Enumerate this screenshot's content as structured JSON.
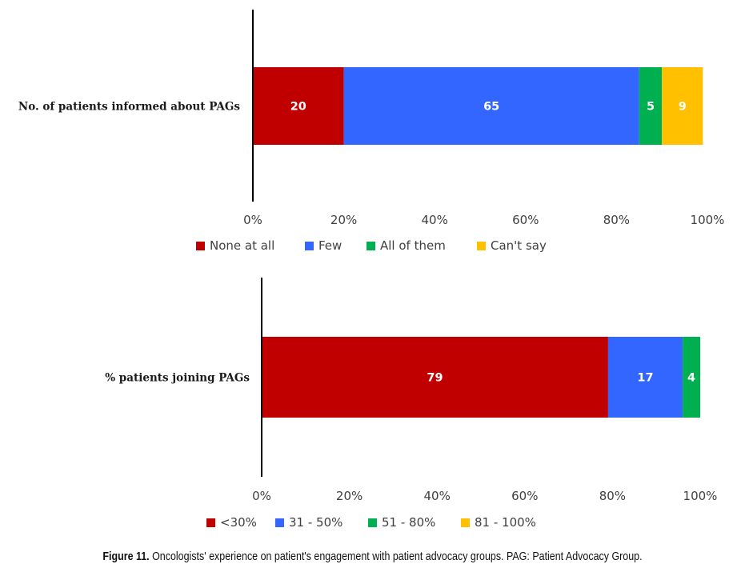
{
  "chart_data": [
    {
      "type": "bar",
      "orientation": "horizontal",
      "stacked": "percent",
      "categories": [
        "No. of patients informed about PAGs"
      ],
      "series": [
        {
          "name": "None at all",
          "values": [
            20
          ],
          "color": "#C00000"
        },
        {
          "name": "Few",
          "values": [
            65
          ],
          "color": "#3366FF"
        },
        {
          "name": "All of them",
          "values": [
            5
          ],
          "color": "#00B050"
        },
        {
          "name": "Can't say",
          "values": [
            9
          ],
          "color": "#FFC000"
        }
      ],
      "xlim": [
        0,
        100
      ],
      "xticks": [
        "0%",
        "20%",
        "40%",
        "60%",
        "80%",
        "100%"
      ],
      "grid": false,
      "legend": "bottom"
    },
    {
      "type": "bar",
      "orientation": "horizontal",
      "stacked": "percent",
      "categories": [
        "% patients joining PAGs"
      ],
      "series": [
        {
          "name": "<30%",
          "values": [
            79
          ],
          "color": "#C00000"
        },
        {
          "name": "31 - 50%",
          "values": [
            17
          ],
          "color": "#3366FF"
        },
        {
          "name": "51 - 80%",
          "values": [
            4
          ],
          "color": "#00B050"
        },
        {
          "name": "81 - 100%",
          "values": [
            0
          ],
          "color": "#FFC000"
        }
      ],
      "xlim": [
        0,
        100
      ],
      "xticks": [
        "0%",
        "20%",
        "40%",
        "60%",
        "80%",
        "100%"
      ],
      "grid": false,
      "legend": "bottom"
    }
  ],
  "caption": {
    "label": "Figure 11.",
    "text": " Oncologists' experience on patient's engagement with patient advocacy groups. PAG: Patient Advocacy Group."
  }
}
